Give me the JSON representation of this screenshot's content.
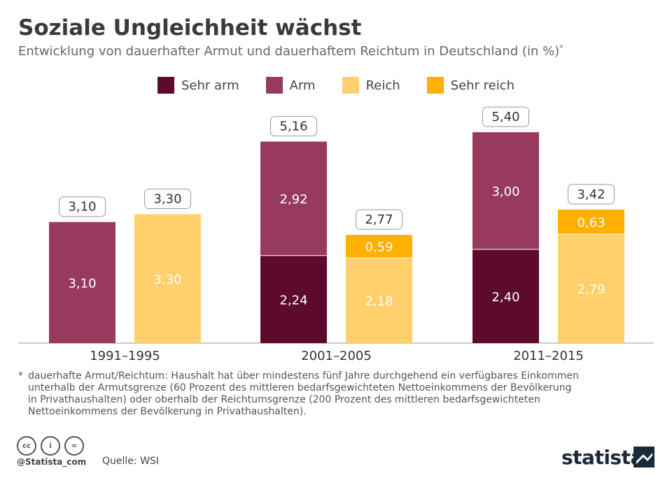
{
  "header": {
    "title": "Soziale Ungleichheit wächst",
    "subtitle": "Entwicklung von dauerhafter Armut und dauerhaftem Reichtum in Deutschland (in %)",
    "subtitle_mark": "*"
  },
  "colors": {
    "sehr_arm": "#5e0a2c",
    "arm": "#973a5e",
    "reich": "#ffd06b",
    "sehr_reich": "#ffb000",
    "axis": "#999999",
    "label_box_border": "#999999"
  },
  "chart_data": {
    "type": "bar",
    "stacked": true,
    "title": "Soziale Ungleichheit wächst",
    "subtitle": "Entwicklung von dauerhafter Armut und dauerhaftem Reichtum in Deutschland (in %)",
    "legend": [
      "Sehr arm",
      "Arm",
      "Reich",
      "Sehr reich"
    ],
    "legend_position": "top-center",
    "ylim": [
      0,
      5.6
    ],
    "grid": false,
    "categories": [
      "1991–1995",
      "2001–2005",
      "2011–2015"
    ],
    "groups": [
      {
        "category": "1991–1995",
        "bars": [
          {
            "type": "armut",
            "total": "3,10",
            "segments": [
              {
                "series": "Arm",
                "value": 3.1,
                "label": "3,10"
              }
            ]
          },
          {
            "type": "reichtum",
            "total": "3,30",
            "segments": [
              {
                "series": "Reich",
                "value": 3.3,
                "label": "3,30"
              }
            ]
          }
        ]
      },
      {
        "category": "2001–2005",
        "bars": [
          {
            "type": "armut",
            "total": "5,16",
            "segments": [
              {
                "series": "Sehr arm",
                "value": 2.24,
                "label": "2,24"
              },
              {
                "series": "Arm",
                "value": 2.92,
                "label": "2,92"
              }
            ]
          },
          {
            "type": "reichtum",
            "total": "2,77",
            "segments": [
              {
                "series": "Reich",
                "value": 2.18,
                "label": "2,18"
              },
              {
                "series": "Sehr reich",
                "value": 0.59,
                "label": "0,59"
              }
            ]
          }
        ]
      },
      {
        "category": "2011–2015",
        "bars": [
          {
            "type": "armut",
            "total": "5,40",
            "segments": [
              {
                "series": "Sehr arm",
                "value": 2.4,
                "label": "2,40"
              },
              {
                "series": "Arm",
                "value": 3.0,
                "label": "3,00"
              }
            ]
          },
          {
            "type": "reichtum",
            "total": "3,42",
            "segments": [
              {
                "series": "Reich",
                "value": 2.79,
                "label": "2,79"
              },
              {
                "series": "Sehr reich",
                "value": 0.63,
                "label": "0,63"
              }
            ]
          }
        ]
      }
    ]
  },
  "footnote": {
    "mark": "*",
    "line1": "dauerhafte Armut/Reichtum: Haushalt hat über mindestens fünf Jahre durchgehend ein verfügbares Einkommen",
    "line2": "unterhalb der Armutsgrenze (60 Prozent des mittleren bedarfsgewichteten Nettoeinkommens der Bevölkerung",
    "line3": "in Privathaushalten) oder oberhalb der Reichtumsgrenze (200 Prozent des mittleren bedarfsgewichteten",
    "line4": "Nettoeinkommens der Bevölkerung in Privathaushalten)."
  },
  "footer": {
    "cc_icon_1": "cc",
    "cc_icon_2": "i",
    "cc_icon_3": "=",
    "handle": "@Statista_com",
    "source": "Quelle: WSI",
    "brand": "statista"
  }
}
